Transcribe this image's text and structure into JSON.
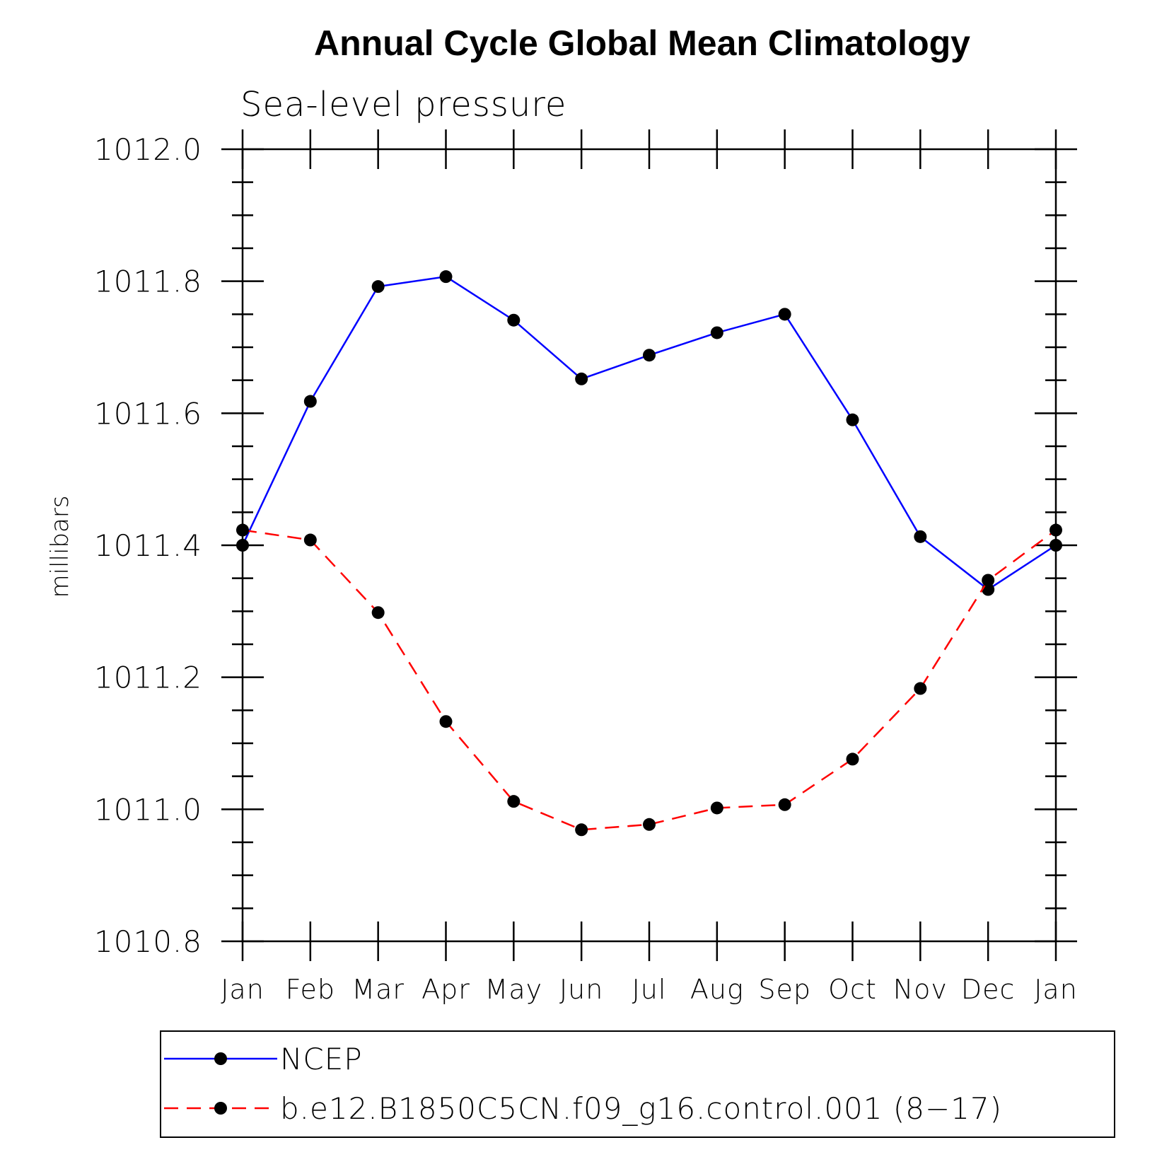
{
  "chart_data": {
    "type": "line",
    "title": "Annual Cycle Global Mean Climatology",
    "subtitle": "Sea-level pressure",
    "xlabel": "",
    "ylabel": "millibars",
    "categories": [
      "Jan",
      "Feb",
      "Mar",
      "Apr",
      "May",
      "Jun",
      "Jul",
      "Aug",
      "Sep",
      "Oct",
      "Nov",
      "Dec",
      "Jan"
    ],
    "ylim": [
      1010.8,
      1012.0
    ],
    "yticks": [
      "1010.8",
      "1011.0",
      "1011.2",
      "1011.4",
      "1011.6",
      "1011.8",
      "1012.0"
    ],
    "series": [
      {
        "name": "NCEP",
        "color": "#0000ff",
        "dash": "solid",
        "marker": "circle",
        "values": [
          1011.4,
          1011.618,
          1011.792,
          1011.807,
          1011.741,
          1011.652,
          1011.688,
          1011.722,
          1011.75,
          1011.59,
          1011.413,
          1011.333,
          1011.4
        ]
      },
      {
        "name": "b.e12.B1850C5CN.f09_g16.control.001 (8−17)",
        "color": "#ff0000",
        "dash": "dashed",
        "marker": "circle",
        "values": [
          1011.423,
          1011.408,
          1011.298,
          1011.133,
          1011.012,
          1010.969,
          1010.977,
          1011.002,
          1011.007,
          1011.076,
          1011.183,
          1011.347,
          1011.423
        ]
      }
    ],
    "legend": "bottom",
    "grid": false
  }
}
